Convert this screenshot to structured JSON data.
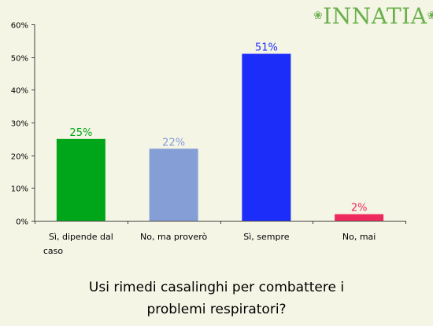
{
  "brand": {
    "name": "INNATIA"
  },
  "chart_data": {
    "type": "bar",
    "title": [
      "Usi rimedi casalinghi per combattere i",
      "problemi respiratori?"
    ],
    "categories": [
      [
        "Sì, dipende dal",
        "caso"
      ],
      [
        "No, ma proverò"
      ],
      [
        "Sì, sempre"
      ],
      [
        "No, mai"
      ]
    ],
    "values": [
      25,
      22,
      51,
      2
    ],
    "value_labels": [
      "25%",
      "22%",
      "51%",
      "2%"
    ],
    "colors": [
      "#00a61a",
      "#859ed6",
      "#1c2cf9",
      "#ee2a5c"
    ],
    "ylim": [
      0,
      60
    ],
    "yticks": [
      0,
      10,
      20,
      30,
      40,
      50,
      60
    ],
    "ytick_labels": [
      "0%",
      "10%",
      "20%",
      "30%",
      "40%",
      "50%",
      "60%"
    ],
    "grid": false,
    "legend": "none"
  }
}
